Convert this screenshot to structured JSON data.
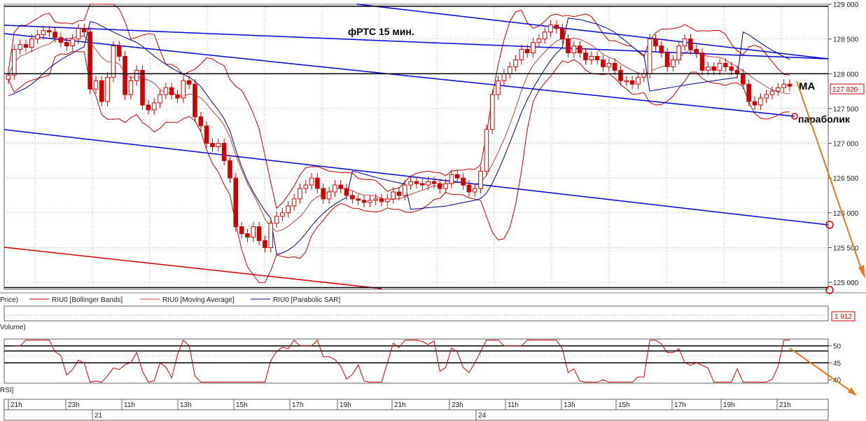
{
  "colors": {
    "candle": "#cc0000",
    "bollinger": "#c00000",
    "moving_average": "#c04040",
    "sar": "#00008b",
    "channel": "#0000cc",
    "trend": "#cc0000",
    "arrow": "#e07a20",
    "grid": "#b0b0b0",
    "label_box": "#cc0000"
  },
  "annotations": {
    "chart_title": "фРТС   15 мин.",
    "ma_label": "МА",
    "sar_label": "параболик"
  },
  "price_panel": {
    "legend_price": "Price)",
    "legend_items": [
      {
        "label": "RIU0 [Bollinger Bands]",
        "color": "#c00000"
      },
      {
        "label": "RIU0 [Moving Average]",
        "color": "#c04040"
      },
      {
        "label": "RIU0 [Parabolic SAR]",
        "color": "#00008b"
      }
    ],
    "current_price_label": "127 820"
  },
  "volume_panel": {
    "label": "Volume)",
    "value_label": "1 912"
  },
  "rsi_panel": {
    "label": "RSI]",
    "levels": [
      50,
      45,
      40
    ],
    "tick_labels": [
      "50",
      "45",
      "40"
    ]
  },
  "time_axis": {
    "hour_labels": [
      "21h",
      "23h",
      "11h",
      "13h",
      "15h",
      "17h",
      "19h",
      "21h",
      "23h",
      "11h",
      "13h",
      "15h",
      "17h",
      "19h",
      "21h"
    ],
    "date_labels": [
      "21",
      "24"
    ]
  },
  "chart_data": {
    "type": "line",
    "title": "фРТС   15 мин.",
    "ylim": [
      124900,
      129000
    ],
    "y_ticks": [
      125000,
      125500,
      126000,
      126500,
      127000,
      127500,
      128000,
      128500,
      129000
    ],
    "y_tick_labels": [
      "125 000",
      "125 500",
      "126 000",
      "126 500",
      "127 000",
      "127 500",
      "128 000",
      "128 500",
      "129 000"
    ],
    "grid": true,
    "candles_close": [
      127980,
      128350,
      128420,
      128380,
      128500,
      128560,
      128620,
      128600,
      128520,
      128450,
      128400,
      128500,
      128650,
      128600,
      127780,
      127900,
      127600,
      127950,
      128400,
      128250,
      127700,
      127900,
      128050,
      127550,
      127480,
      127580,
      127700,
      127800,
      127700,
      127650,
      127900,
      127850,
      127380,
      127250,
      127000,
      126950,
      127000,
      126750,
      126500,
      125800,
      125700,
      125650,
      125800,
      125600,
      125500,
      125850,
      125950,
      126000,
      126100,
      126200,
      126350,
      126400,
      126500,
      126350,
      126200,
      126300,
      126400,
      126350,
      126250,
      126200,
      126180,
      126150,
      126180,
      126200,
      126160,
      126200,
      126300,
      126250,
      126400,
      126450,
      126420,
      126400,
      126450,
      126420,
      126350,
      126420,
      126550,
      126500,
      126400,
      126300,
      126350,
      126600,
      127200,
      127700,
      127900,
      128000,
      128100,
      128200,
      128350,
      128300,
      128450,
      128500,
      128600,
      128700,
      128650,
      128500,
      128300,
      128400,
      128300,
      128200,
      128250,
      128200,
      128100,
      128150,
      128050,
      127900,
      127900,
      127850,
      127950,
      128000,
      128500,
      128400,
      128300,
      128100,
      128200,
      128400,
      128500,
      128350,
      128300,
      128050,
      128100,
      128050,
      128150,
      128100,
      128050,
      128000,
      127850,
      127600,
      127550,
      127650,
      127700,
      127750,
      127800,
      127850,
      127820
    ],
    "horizontal_lines": [
      128970,
      128000,
      124925
    ],
    "rsi_horizontal_lines": [
      50,
      48.5,
      45
    ]
  }
}
